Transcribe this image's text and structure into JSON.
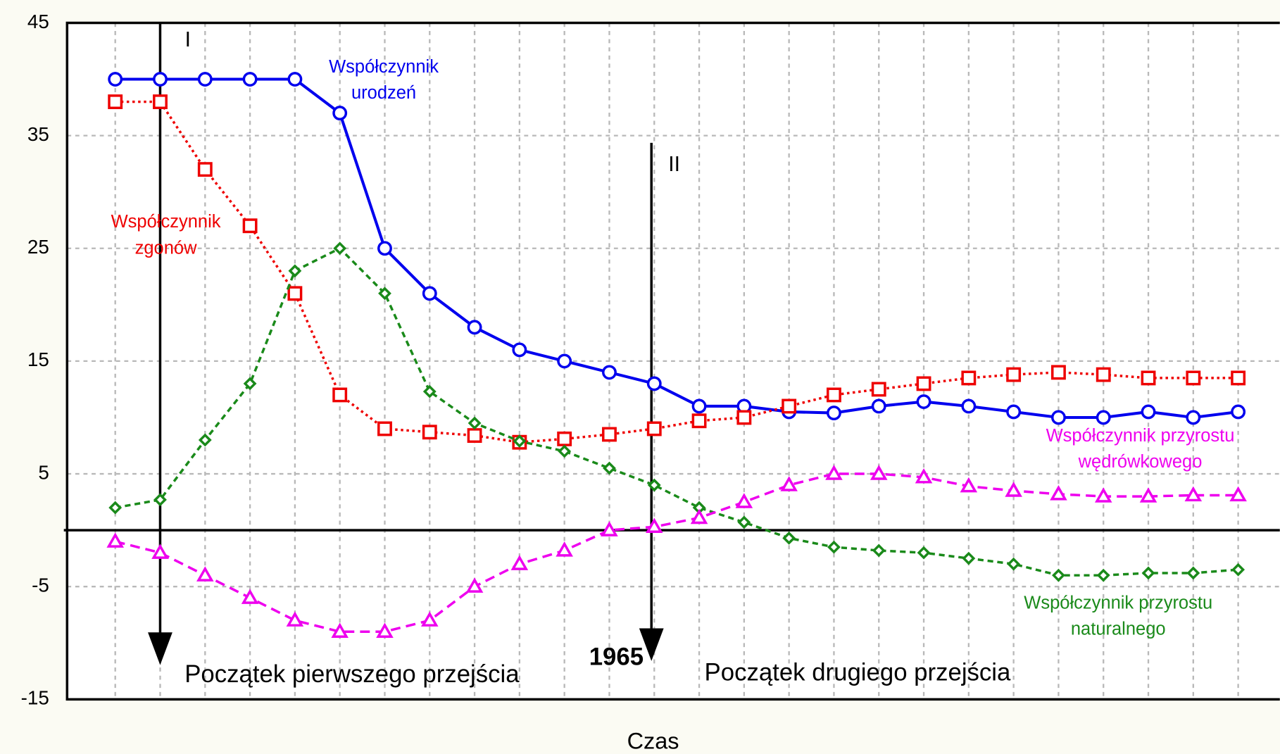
{
  "chart_data": {
    "type": "line",
    "x_label": "Czas",
    "categories": [
      null,
      null,
      null,
      null,
      null,
      null,
      null,
      null,
      null,
      null,
      null,
      null,
      null,
      null,
      null,
      null,
      null,
      null,
      null,
      null,
      null,
      null,
      null,
      null,
      null,
      null
    ],
    "ylim": [
      -15,
      45
    ],
    "yticks": [
      -15,
      -5,
      5,
      15,
      25,
      35,
      45
    ],
    "grid": true,
    "series": [
      {
        "color": "#0000ee",
        "marker": "circle",
        "line": "solid",
        "values": [
          40,
          40,
          40,
          40,
          40,
          37,
          25,
          21,
          18,
          16,
          15,
          14,
          13,
          11,
          11,
          10.5,
          10.4,
          11,
          11.4,
          11,
          10.5,
          10,
          10,
          10.5,
          10,
          10.5
        ]
      },
      {
        "color": "#ee0000",
        "marker": "square",
        "line": "dotted",
        "values": [
          38,
          38,
          32,
          27,
          21,
          12,
          9,
          8.7,
          8.4,
          7.8,
          8.1,
          8.5,
          9,
          9.7,
          10,
          11,
          12,
          12.5,
          13,
          13.5,
          13.8,
          14,
          13.8,
          13.5,
          13.5,
          13.5
        ]
      },
      {
        "color": "#1a8a1a",
        "marker": "diamond",
        "line": "dashed",
        "values": [
          2,
          2.7,
          8,
          13,
          23,
          25,
          21,
          12.3,
          9.5,
          7.9,
          7,
          5.5,
          4,
          2,
          0.7,
          -0.7,
          -1.5,
          -1.8,
          -2,
          -2.5,
          -3,
          -4,
          -4,
          -3.8,
          -3.8,
          -3.5
        ]
      },
      {
        "color": "#ee00ee",
        "marker": "triangle",
        "line": "longdash",
        "values": [
          -1,
          -2,
          -4,
          -6,
          -8,
          -9,
          -9,
          -8,
          -5,
          -3,
          -1.8,
          0,
          0.3,
          1.1,
          2.5,
          4,
          5,
          5,
          4.7,
          3.9,
          3.5,
          3.2,
          3,
          3,
          3.1,
          3.1
        ]
      }
    ],
    "annotations": [
      {
        "lines": [
          "Współczynnik",
          "urodzeń"
        ],
        "color": "#0000ee"
      },
      {
        "lines": [
          "Współczynnik",
          "zgonów"
        ],
        "color": "#ee0000"
      },
      {
        "lines": [
          "Współczynnik przyrostu",
          "wędrówkowego"
        ],
        "color": "#ee00ee"
      },
      {
        "lines": [
          "Współczynnik przyrostu",
          "naturalnego"
        ],
        "color": "#1a8a1a"
      },
      {
        "lines": [
          "I"
        ],
        "color": "#000000"
      },
      {
        "lines": [
          "II"
        ],
        "color": "#000000"
      },
      {
        "lines": [
          "Początek pierwszego przejścia"
        ],
        "color": "#000000"
      },
      {
        "lines": [
          "Początek drugiego przejścia"
        ],
        "color": "#000000"
      },
      {
        "lines": [
          "1965"
        ],
        "color": "#000000"
      }
    ]
  }
}
